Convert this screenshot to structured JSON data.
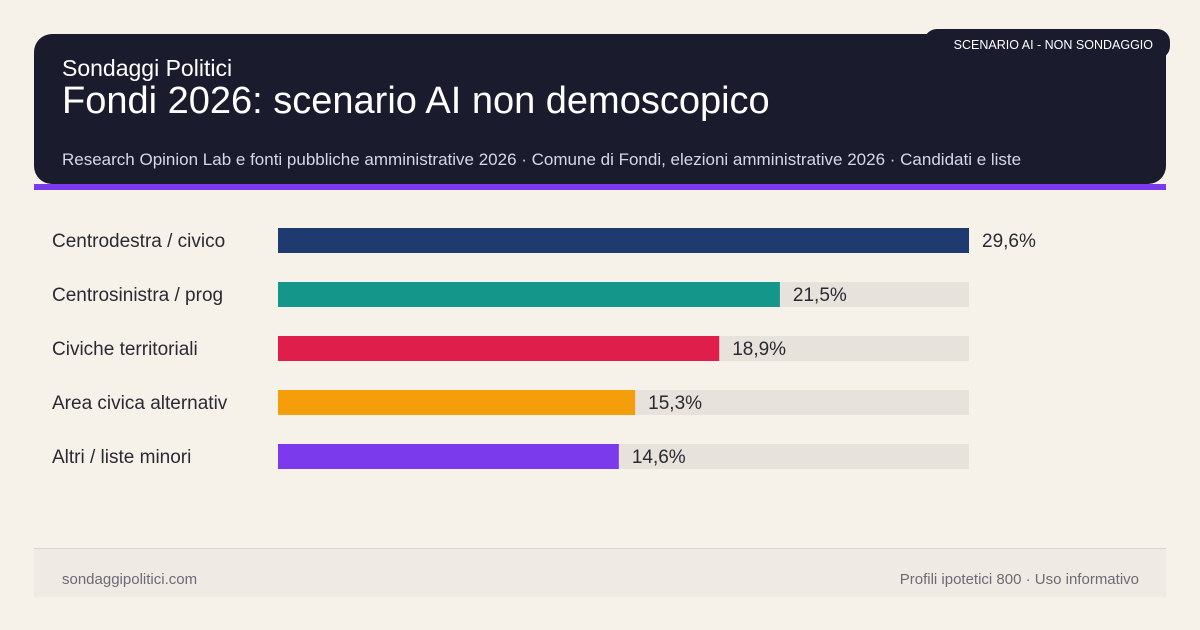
{
  "header": {
    "brand": "Sondaggi Politici",
    "title": "Fondi 2026: scenario AI non demoscopico",
    "subtitle": "Research Opinion Lab e fonti pubbliche amministrative 2026 · Comune di Fondi, elezioni amministrative 2026 · Candidati e liste",
    "badge": "SCENARIO AI - NON SONDAGGIO"
  },
  "chart_data": {
    "type": "bar",
    "orientation": "horizontal",
    "categories": [
      "Centrodestra / civico",
      "Centrosinistra / prog",
      "Civiche territoriali",
      "Area civica alternativ",
      "Altri / liste minori"
    ],
    "values": [
      29.6,
      21.5,
      18.9,
      15.3,
      14.6
    ],
    "value_labels": [
      "29,6%",
      "21,5%",
      "18,9%",
      "15,3%",
      "14,6%"
    ],
    "colors": [
      "#1e3a6e",
      "#14968a",
      "#e01e4c",
      "#f59e0b",
      "#7c3aed"
    ],
    "track_color": "#e8e2dc",
    "xlim": [
      0,
      29.6
    ],
    "grid": false
  },
  "footer": {
    "site": "sondaggipolitici.com",
    "note": "Profili ipotetici 800 · Uso informativo"
  }
}
